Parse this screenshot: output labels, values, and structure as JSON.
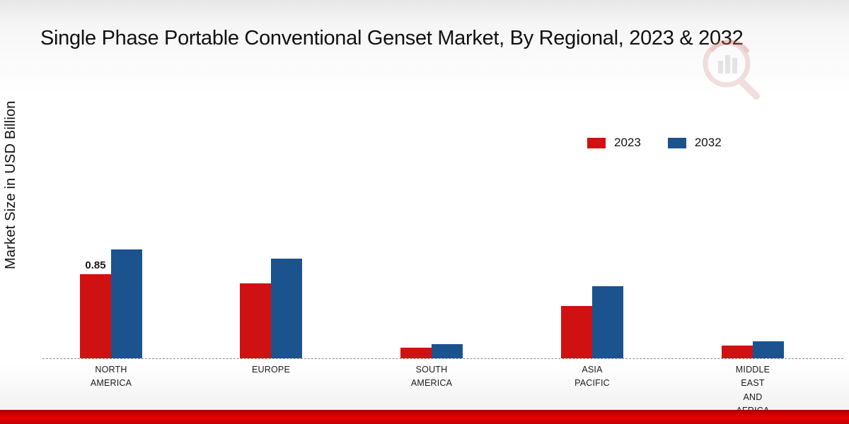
{
  "page": {
    "title": "Single Phase Portable Conventional Genset Market, By Regional, 2023 & 2032",
    "ylabel": "Market Size in USD Billion"
  },
  "legend": [
    {
      "label": "2023",
      "color": "#d01111"
    },
    {
      "label": "2032",
      "color": "#1b538e"
    }
  ],
  "colors": {
    "accent_red": "#d01111",
    "accent_blue": "#1b538e",
    "bottom_bar": "#d40000"
  },
  "chart_data": {
    "type": "bar",
    "title": "Single Phase Portable Conventional Genset Market, By Regional, 2023 & 2032",
    "xlabel": "",
    "ylabel": "Market Size in USD Billion",
    "categories": [
      [
        "NORTH",
        "AMERICA"
      ],
      [
        "EUROPE"
      ],
      [
        "SOUTH",
        "AMERICA"
      ],
      [
        "ASIA",
        "PACIFIC"
      ],
      [
        "MIDDLE",
        "EAST",
        "AND",
        "AFRICA"
      ]
    ],
    "series": [
      {
        "name": "2023",
        "color": "#d01111",
        "values": [
          0.85,
          0.76,
          0.11,
          0.53,
          0.13
        ]
      },
      {
        "name": "2032",
        "color": "#1b538e",
        "values": [
          1.1,
          1.01,
          0.14,
          0.73,
          0.17
        ]
      }
    ],
    "annotations": [
      {
        "category": 0,
        "series": 0,
        "text": "0.85"
      }
    ],
    "ylim": [
      0,
      1.5
    ],
    "grid": false,
    "baseline_style": "dashed",
    "legend_position": "upper-right"
  }
}
